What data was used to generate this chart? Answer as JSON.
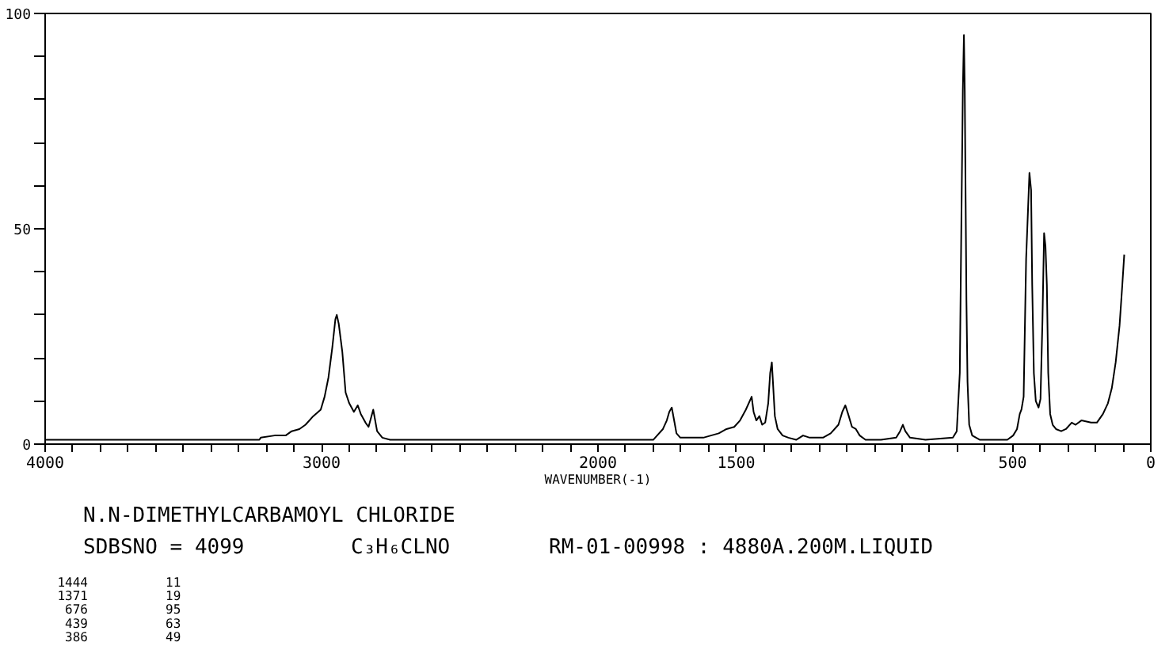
{
  "chart_data": {
    "type": "line",
    "title": "N.N-DIMETHYLCARBAMOYL CHLORIDE",
    "xlabel": "WAVENUMBER(-1)",
    "annotations": [
      "SDBSNO = 4099",
      "C₃H₆CLNO",
      "RM-01-00998 : 4880A.200M.LIQUID",
      "1444",
      "11",
      "1371",
      "19",
      "676",
      "95",
      "439",
      "63",
      "386",
      "49"
    ],
    "x": [
      4000,
      3600,
      3225,
      3220,
      3170,
      3130,
      3108,
      3080,
      3058,
      3030,
      3003,
      2989,
      2975,
      2961,
      2950,
      2945,
      2938,
      2925,
      2913,
      2900,
      2883,
      2869,
      2858,
      2841,
      2830,
      2813,
      2799,
      2780,
      2752,
      2400,
      2100,
      1842,
      1800,
      1786,
      1765,
      1751,
      1742,
      1733,
      1723,
      1716,
      1702,
      1674,
      1619,
      1563,
      1535,
      1507,
      1486,
      1465,
      1444,
      1437,
      1427,
      1416,
      1406,
      1395,
      1384,
      1377,
      1371,
      1367,
      1360,
      1350,
      1332,
      1311,
      1283,
      1258,
      1234,
      1186,
      1158,
      1130,
      1116,
      1105,
      1095,
      1081,
      1067,
      1053,
      1032,
      976,
      921,
      907,
      897,
      888,
      871,
      815,
      716,
      702,
      691,
      685,
      680,
      676,
      673,
      667,
      663,
      657,
      646,
      618,
      519,
      498,
      484,
      474,
      468,
      460,
      451,
      439,
      433,
      429,
      423,
      416,
      406,
      399,
      392,
      386,
      381,
      376,
      371,
      364,
      355,
      343,
      324,
      307,
      286,
      272,
      251,
      216,
      195,
      173,
      155,
      141,
      127,
      113,
      103,
      96
    ],
    "series": [
      {
        "color": "#000000",
        "values": [
          1,
          1,
          1,
          1.5,
          2,
          2,
          3,
          3.5,
          4.5,
          6.5,
          8,
          11,
          15.5,
          22.5,
          29,
          30,
          28,
          21.5,
          12,
          9.5,
          7.5,
          9,
          7,
          5,
          4,
          8,
          3,
          1.5,
          1,
          1,
          1,
          1,
          1,
          2,
          3.5,
          5.5,
          7.5,
          8.5,
          5,
          2.5,
          1.5,
          1.5,
          1.5,
          2.5,
          3.5,
          4,
          5.5,
          8,
          11,
          7.5,
          5.5,
          6.5,
          4.5,
          5,
          9.5,
          16.5,
          19,
          14.5,
          6.5,
          3.5,
          2,
          1.5,
          1,
          2,
          1.5,
          1.5,
          2.5,
          4.5,
          7.5,
          9,
          7,
          4,
          3.5,
          2,
          1,
          1,
          1.5,
          3,
          4.5,
          3,
          1.5,
          1,
          1.5,
          3,
          16.5,
          53,
          82,
          95,
          82,
          33.5,
          14.5,
          4.5,
          2,
          1,
          1,
          2,
          3.5,
          7,
          8,
          11,
          43,
          63,
          59,
          37,
          16.5,
          10,
          8.5,
          10.5,
          28.5,
          49,
          46,
          37,
          16.5,
          7,
          4.5,
          3.5,
          3,
          3.5,
          5,
          4.5,
          5.5,
          5,
          5,
          7,
          9.5,
          13,
          19,
          27.5,
          37,
          44
        ]
      }
    ],
    "xlim": [
      4000,
      0
    ],
    "ylim": [
      0,
      100
    ],
    "xticks": [
      4000,
      {
        "value": 3900,
        "label": null
      },
      {
        "value": 3800,
        "label": null
      },
      {
        "value": 3700,
        "label": null
      },
      {
        "value": 3600,
        "label": null
      },
      {
        "value": 3500,
        "label": null
      },
      {
        "value": 3400,
        "label": null
      },
      {
        "value": 3300,
        "label": null
      },
      {
        "value": 3200,
        "label": null
      },
      {
        "value": 3100,
        "label": null
      },
      3000,
      {
        "value": 2900,
        "label": null
      },
      {
        "value": 2800,
        "label": null
      },
      {
        "value": 2700,
        "label": null
      },
      {
        "value": 2600,
        "label": null
      },
      {
        "value": 2500,
        "label": null
      },
      {
        "value": 2400,
        "label": null
      },
      {
        "value": 2300,
        "label": null
      },
      {
        "value": 2200,
        "label": null
      },
      {
        "value": 2100,
        "label": null
      },
      2000,
      {
        "value": 1900,
        "label": null
      },
      {
        "value": 1800,
        "label": null
      },
      {
        "value": 1700,
        "label": null
      },
      {
        "value": 1600,
        "label": null
      },
      1500,
      {
        "value": 1400,
        "label": null
      },
      {
        "value": 1300,
        "label": null
      },
      {
        "value": 1200,
        "label": null
      },
      {
        "value": 1100,
        "label": null
      },
      {
        "value": 1000,
        "label": null
      },
      {
        "value": 900,
        "label": null
      },
      {
        "value": 800,
        "label": null
      },
      {
        "value": 700,
        "label": null
      },
      {
        "value": 600,
        "label": null
      },
      500,
      {
        "value": 400,
        "label": null
      },
      {
        "value": 300,
        "label": null
      },
      {
        "value": 200,
        "label": null
      },
      {
        "value": 100,
        "label": null
      },
      0
    ],
    "yticks": [
      0,
      {
        "value": 10,
        "label": null
      },
      {
        "value": 20,
        "label": null
      },
      {
        "value": 30,
        "label": null
      },
      {
        "value": 40,
        "label": null
      },
      50,
      {
        "value": 60,
        "label": null
      },
      {
        "value": 70,
        "label": null
      },
      {
        "value": 80,
        "label": null
      },
      {
        "value": 90,
        "label": null
      },
      100
    ],
    "grid": false,
    "line_style": "solid"
  }
}
